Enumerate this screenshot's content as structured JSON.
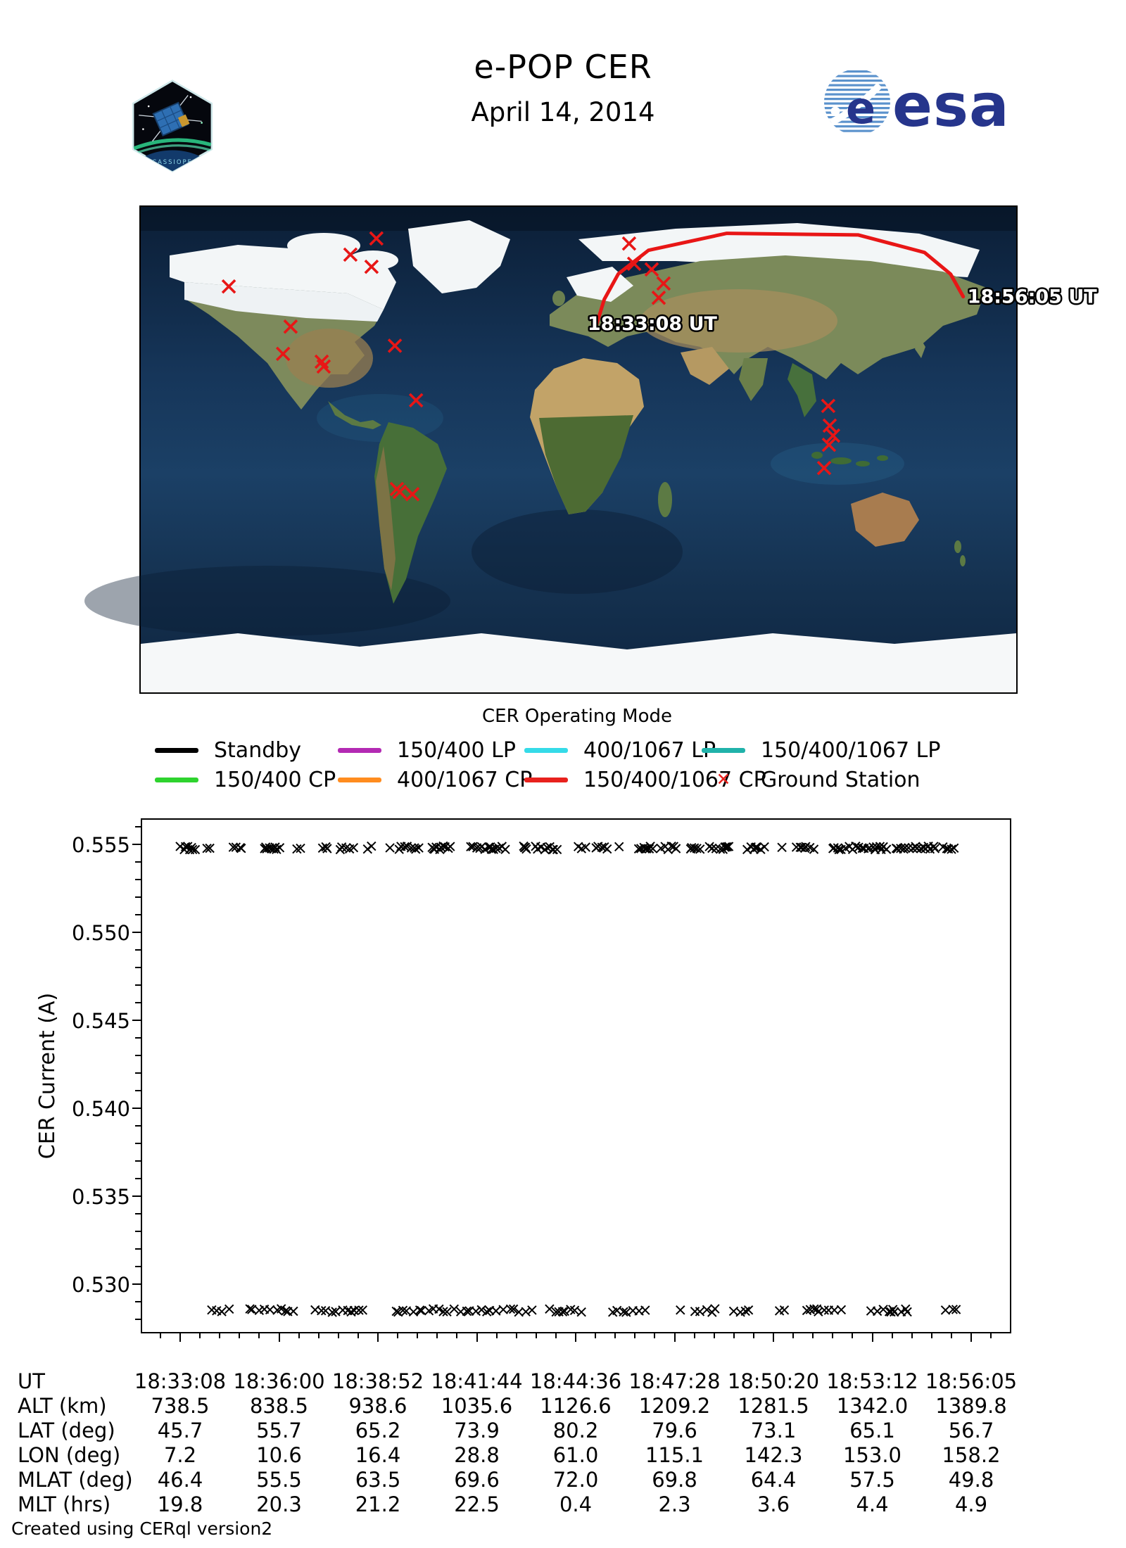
{
  "header": {
    "title": "e-POP CER",
    "subtitle": "April 14, 2014",
    "esa_text": "esa",
    "patch_text": "CASSIOPE"
  },
  "map": {
    "xlabel": "CER Operating Mode",
    "track": {
      "start_label": "18:33:08 UT",
      "end_label": "18:56:05 UT",
      "color": "#e81616",
      "points_lonlat": [
        [
          7.2,
          45.7
        ],
        [
          10.6,
          55.7
        ],
        [
          16.4,
          65.2
        ],
        [
          28.8,
          73.9
        ],
        [
          61.0,
          80.2
        ],
        [
          115.1,
          79.6
        ],
        [
          142.3,
          73.1
        ],
        [
          153.0,
          65.1
        ],
        [
          158.2,
          56.7
        ]
      ]
    },
    "ground_stations": {
      "color": "#e81616",
      "marker": "x",
      "points_lonlat": [
        [
          -83.1,
          78.3
        ],
        [
          -93.8,
          72.3
        ],
        [
          -85.1,
          67.8
        ],
        [
          -143.8,
          60.5
        ],
        [
          20.8,
          76.4
        ],
        [
          22.9,
          68.9
        ],
        [
          30.1,
          66.8
        ],
        [
          35.0,
          61.6
        ],
        [
          33.0,
          56.3
        ],
        [
          -118.4,
          45.6
        ],
        [
          -121.5,
          35.5
        ],
        [
          -105.6,
          32.6
        ],
        [
          -104.8,
          30.8
        ],
        [
          -75.5,
          38.5
        ],
        [
          -66.8,
          18.3
        ],
        [
          -74.7,
          -14.6
        ],
        [
          -73.5,
          -15.7
        ],
        [
          -68.3,
          -16.5
        ],
        [
          102.7,
          16.2
        ],
        [
          103.3,
          8.9
        ],
        [
          104.7,
          5.2
        ],
        [
          103.0,
          1.8
        ],
        [
          101.0,
          -6.8
        ]
      ]
    }
  },
  "legend": {
    "title": "CER Operating Mode",
    "items": [
      {
        "label": "Standby",
        "color": "#000000",
        "type": "line"
      },
      {
        "label": "150/400 LP",
        "color": "#b32ab3",
        "type": "line"
      },
      {
        "label": "400/1067 LP",
        "color": "#35dbe8",
        "type": "line"
      },
      {
        "label": "150/400/1067 LP",
        "color": "#20b2aa",
        "type": "line"
      },
      {
        "label": "150/400 CP",
        "color": "#2ed32e",
        "type": "line"
      },
      {
        "label": "400/1067 CP",
        "color": "#ff8c1f",
        "type": "line"
      },
      {
        "label": "150/400/1067 CP",
        "color": "#e8211d",
        "type": "line"
      },
      {
        "label": "Ground Station",
        "color": "#e8211d",
        "type": "marker",
        "marker": "x",
        "marker_char": "✕"
      }
    ]
  },
  "chart_data": {
    "type": "scatter",
    "marker": "x",
    "marker_color": "#000000",
    "ylabel": "CER Current (A)",
    "yticks": [
      0.555,
      0.55,
      0.545,
      0.54,
      0.535,
      0.53
    ],
    "ytick_labels": [
      "0.555",
      "0.550",
      "0.545",
      "0.540",
      "0.535",
      "0.530"
    ],
    "ylim": [
      0.5272,
      0.5565
    ],
    "grid": false,
    "x_span_seconds": 1377,
    "xticklabels": [
      "18:33:08",
      "18:36:00",
      "18:38:52",
      "18:41:44",
      "18:44:36",
      "18:47:28",
      "18:50:20",
      "18:53:12",
      "18:56:05"
    ],
    "series": [
      {
        "name": "CER current high band",
        "y_value": 0.5548,
        "x_start_s": 0,
        "x_end_s": 1377,
        "n_points": 300
      },
      {
        "name": "CER current low band",
        "y_value": 0.5285,
        "x_start_s": 55,
        "x_end_s": 1372,
        "n_points": 170
      }
    ]
  },
  "table": {
    "rows": [
      {
        "label": "UT",
        "values": [
          "18:33:08",
          "18:36:00",
          "18:38:52",
          "18:41:44",
          "18:44:36",
          "18:47:28",
          "18:50:20",
          "18:53:12",
          "18:56:05"
        ]
      },
      {
        "label": "ALT (km)",
        "values": [
          "738.5",
          "838.5",
          "938.6",
          "1035.6",
          "1126.6",
          "1209.2",
          "1281.5",
          "1342.0",
          "1389.8"
        ]
      },
      {
        "label": "LAT (deg)",
        "values": [
          "45.7",
          "55.7",
          "65.2",
          "73.9",
          "80.2",
          "79.6",
          "73.1",
          "65.1",
          "56.7"
        ]
      },
      {
        "label": "LON (deg)",
        "values": [
          "7.2",
          "10.6",
          "16.4",
          "28.8",
          "61.0",
          "115.1",
          "142.3",
          "153.0",
          "158.2"
        ]
      },
      {
        "label": "MLAT (deg)",
        "values": [
          "46.4",
          "55.5",
          "63.5",
          "69.6",
          "72.0",
          "69.8",
          "64.4",
          "57.5",
          "49.8"
        ]
      },
      {
        "label": "MLT (hrs)",
        "values": [
          "19.8",
          "20.3",
          "21.2",
          "22.5",
          "0.4",
          "2.3",
          "3.6",
          "4.4",
          "4.9"
        ]
      }
    ]
  },
  "footer": {
    "credit": "Created using CERql version2"
  }
}
